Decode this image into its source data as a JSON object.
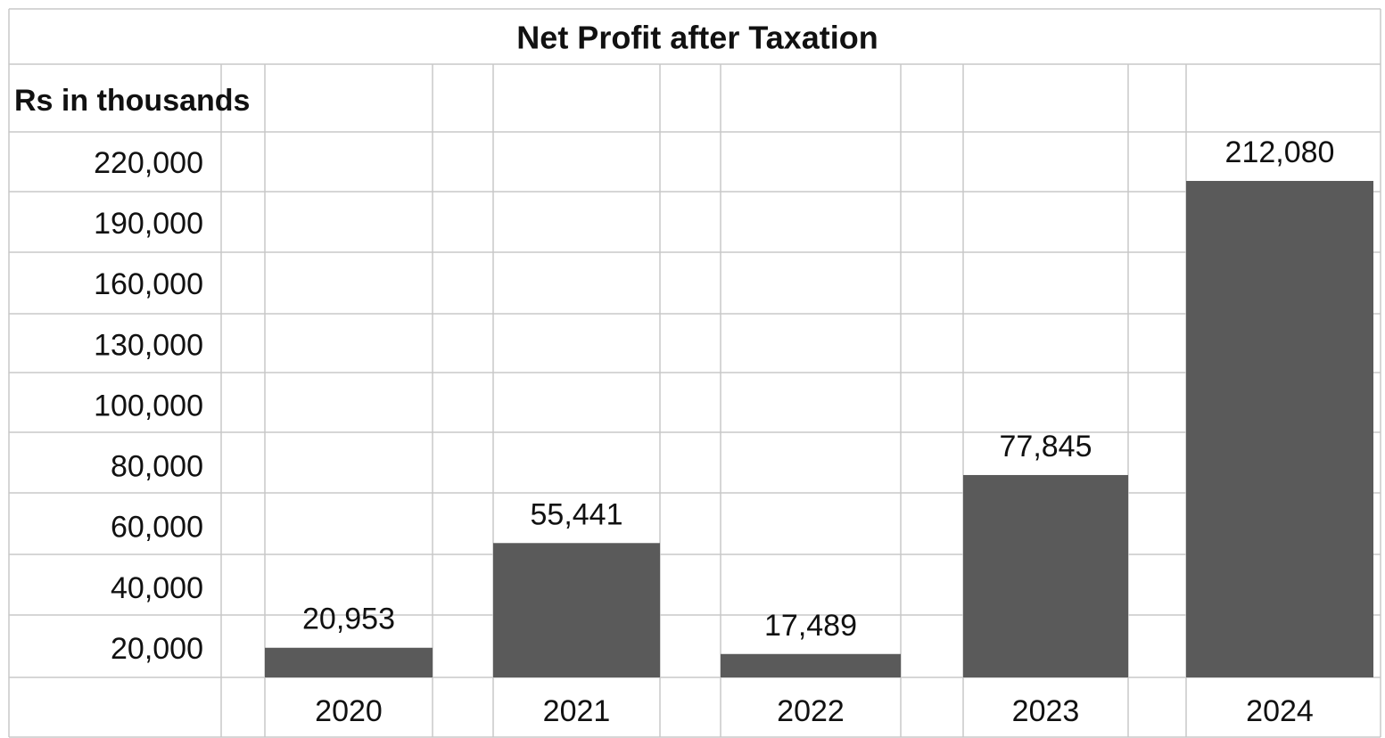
{
  "chart_data": {
    "type": "bar",
    "title": "Net Profit after Taxation",
    "y_label": "Rs in thousands",
    "categories": [
      "2020",
      "2021",
      "2022",
      "2023",
      "2024"
    ],
    "values": [
      20953,
      55441,
      17489,
      77845,
      212080
    ],
    "value_labels": [
      "20,953",
      "55,441",
      "17,489",
      "77,845",
      "212,080"
    ],
    "color": "#5a5a5a",
    "ylim": [
      0,
      220000
    ],
    "yticks": [
      {
        "value": 20000,
        "label": "20,000"
      },
      {
        "value": 40000,
        "label": "40,000"
      },
      {
        "value": 60000,
        "label": "60,000"
      },
      {
        "value": 80000,
        "label": "80,000"
      },
      {
        "value": 100000,
        "label": "100,000"
      },
      {
        "value": 130000,
        "label": "130,000"
      },
      {
        "value": 160000,
        "label": "160,000"
      },
      {
        "value": 190000,
        "label": "190,000"
      },
      {
        "value": 220000,
        "label": "220,000"
      }
    ]
  }
}
